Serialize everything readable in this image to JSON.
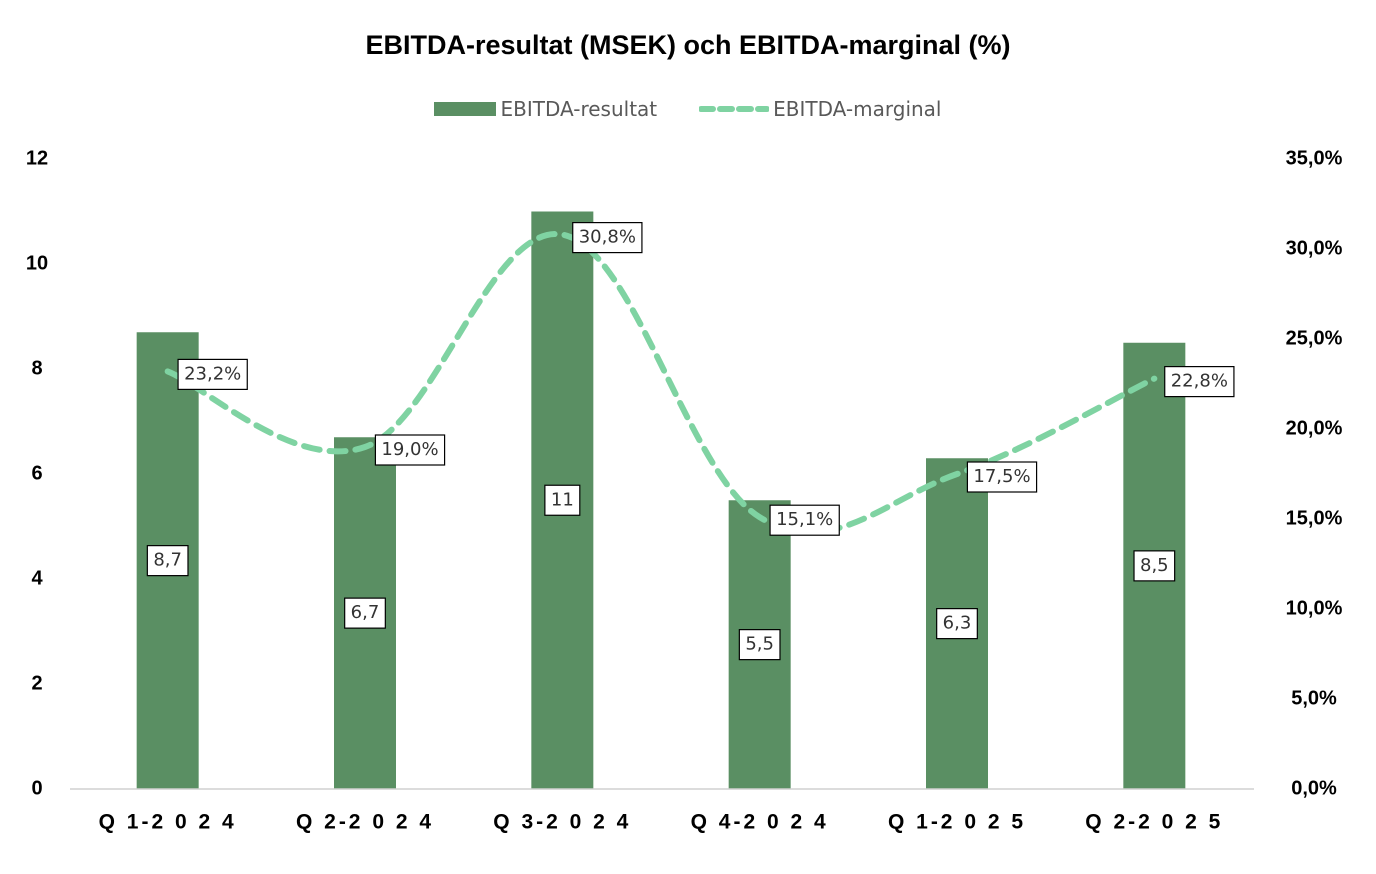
{
  "chart_data": {
    "type": "bar",
    "title": "EBITDA-resultat (MSEK) och EBITDA-marginal (%)",
    "categories": [
      "Q 1-2 0 2 4",
      "Q 2-2 0 2 4",
      "Q 3-2 0 2 4",
      "Q 4-2 0 2 4",
      "Q 1-2 0 2 5",
      "Q 2-2 0 2 5"
    ],
    "series": [
      {
        "name": "EBITDA-resultat",
        "type": "bar",
        "axis": "left",
        "color": "#5a8f63",
        "values": [
          8.7,
          6.7,
          11,
          5.5,
          6.3,
          8.5
        ],
        "labels": [
          "8,7",
          "6,7",
          "11",
          "5,5",
          "6,3",
          "8,5"
        ]
      },
      {
        "name": "EBITDA-marginal",
        "type": "line",
        "style": "dashed",
        "axis": "right",
        "color": "#7fd3a2",
        "values": [
          23.2,
          19.0,
          30.8,
          15.1,
          17.5,
          22.8
        ],
        "labels": [
          "23,2%",
          "19,0%",
          "30,8%",
          "15,1%",
          "17,5%",
          "22,8%"
        ]
      }
    ],
    "y_left": {
      "ylim": [
        0,
        12
      ],
      "ticks": [
        "0",
        "2",
        "4",
        "6",
        "8",
        "10",
        "12"
      ]
    },
    "y_right": {
      "ylim": [
        0,
        35
      ],
      "ticks": [
        "0,0%",
        "5,0%",
        "10,0%",
        "15,0%",
        "20,0%",
        "25,0%",
        "30,0%",
        "35,0%"
      ]
    },
    "grid": false,
    "legend_position": "top"
  }
}
